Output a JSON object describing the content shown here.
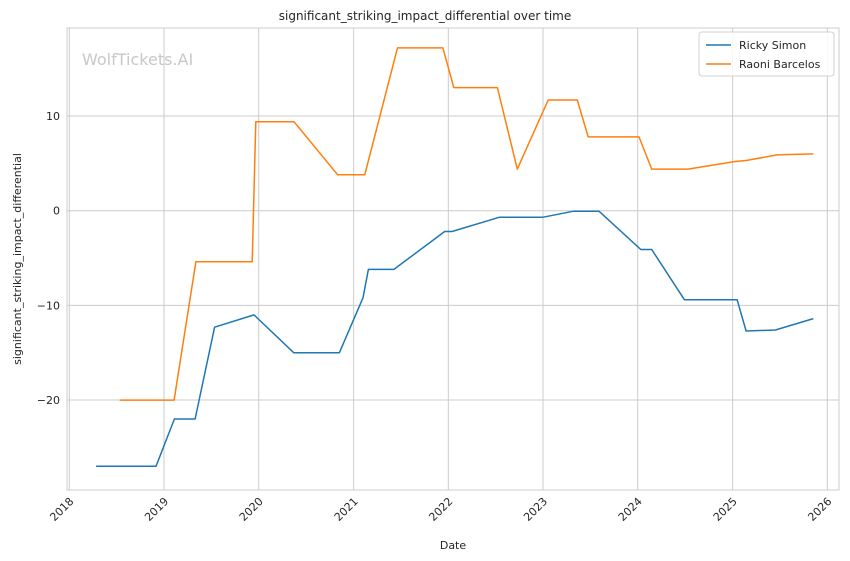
{
  "watermark": "WolfTickets.AI",
  "chart_data": {
    "type": "line",
    "title": "significant_striking_impact_differential over time",
    "xlabel": "Date",
    "ylabel": "significant_striking_impact_differential",
    "xlim": [
      "2017-12-23",
      "2026-02-15"
    ],
    "ylim": [
      -29.5,
      19.3
    ],
    "x_ticks": [
      "2018",
      "2019",
      "2020",
      "2021",
      "2022",
      "2023",
      "2024",
      "2025",
      "2026"
    ],
    "y_ticks": [
      -20,
      -10,
      0,
      10
    ],
    "grid": true,
    "legend_position": "top-right",
    "colors": {
      "Ricky Simon": "#1f77b4",
      "Raoni Barcelos": "#ff7f0e"
    },
    "series": [
      {
        "name": "Ricky Simon",
        "x": [
          "2018-04-14",
          "2018-12-01",
          "2019-02-10",
          "2019-05-01",
          "2019-07-15",
          "2019-12-14",
          "2020-05-15",
          "2020-11-07",
          "2021-02-06",
          "2021-02-27",
          "2021-06-05",
          "2021-12-18",
          "2022-01-15",
          "2022-07-16",
          "2022-12-30",
          "2023-04-29",
          "2023-08-05",
          "2024-01-13",
          "2024-02-24",
          "2024-06-29",
          "2025-01-18",
          "2025-02-22",
          "2025-06-15",
          "2025-11-08"
        ],
        "values": [
          -27.0,
          -27.0,
          -22.0,
          -22.0,
          -12.3,
          -11.0,
          -15.0,
          -15.0,
          -9.2,
          -6.2,
          -6.2,
          -2.2,
          -2.2,
          -0.7,
          -0.7,
          -0.05,
          -0.05,
          -4.1,
          -4.1,
          -9.4,
          -9.4,
          -12.7,
          -12.6,
          -11.4
        ]
      },
      {
        "name": "Raoni Barcelos",
        "x": [
          "2018-07-14",
          "2019-02-09",
          "2019-05-04",
          "2019-12-07",
          "2019-12-21",
          "2020-05-16",
          "2020-10-31",
          "2021-02-13",
          "2021-06-19",
          "2021-12-11",
          "2022-01-22",
          "2022-07-09",
          "2022-09-24",
          "2023-01-21",
          "2023-05-13",
          "2023-06-24",
          "2024-01-06",
          "2024-02-24",
          "2024-07-13",
          "2025-01-11",
          "2025-02-22",
          "2025-06-21",
          "2025-11-08"
        ],
        "values": [
          -20.0,
          -20.0,
          -5.4,
          -5.4,
          9.4,
          9.4,
          3.8,
          3.8,
          17.2,
          17.2,
          13.0,
          13.0,
          4.4,
          11.7,
          11.7,
          7.8,
          7.8,
          4.4,
          4.4,
          5.2,
          5.3,
          5.9,
          6.0
        ]
      }
    ]
  }
}
